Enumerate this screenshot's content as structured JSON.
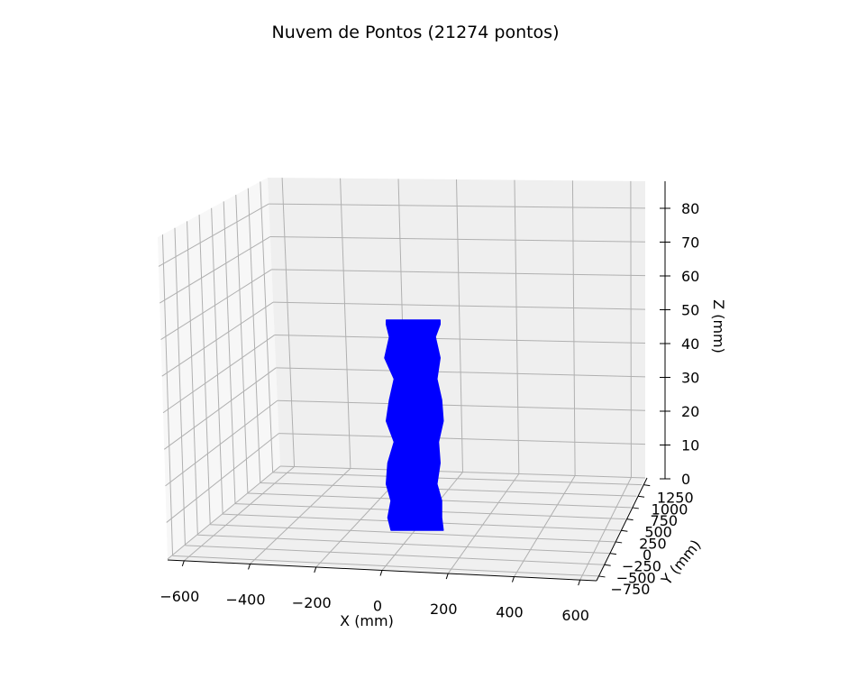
{
  "chart_data": {
    "type": "scatter",
    "projection": "3d",
    "title": "Nuvem de Pontos (21274 pontos)",
    "xlabel": "X (mm)",
    "ylabel": "Y (mm)",
    "zlabel": "Z (mm)",
    "x_ticks": [
      "−600",
      "−400",
      "−200",
      "0",
      "200",
      "400",
      "600"
    ],
    "y_ticks": [
      "−750",
      "−500",
      "−250",
      "0",
      "250",
      "500",
      "750",
      "1000",
      "1250"
    ],
    "z_ticks": [
      "0",
      "10",
      "20",
      "30",
      "40",
      "50",
      "60",
      "70",
      "80"
    ],
    "xlim": [
      -650,
      650
    ],
    "ylim": [
      -850,
      1400
    ],
    "zlim": [
      0,
      88
    ],
    "grid": true,
    "point_color": "#0000ff",
    "point_count": 21274,
    "cloud_outline": {
      "z": [
        0,
        3,
        7,
        11,
        16,
        21,
        26,
        31,
        36,
        41,
        46,
        49,
        50
      ],
      "x_left": [
        60,
        50,
        60,
        45,
        50,
        70,
        45,
        55,
        70,
        40,
        55,
        45,
        45
      ],
      "x_right": [
        225,
        220,
        220,
        205,
        215,
        210,
        225,
        220,
        205,
        215,
        200,
        215,
        215
      ]
    }
  }
}
